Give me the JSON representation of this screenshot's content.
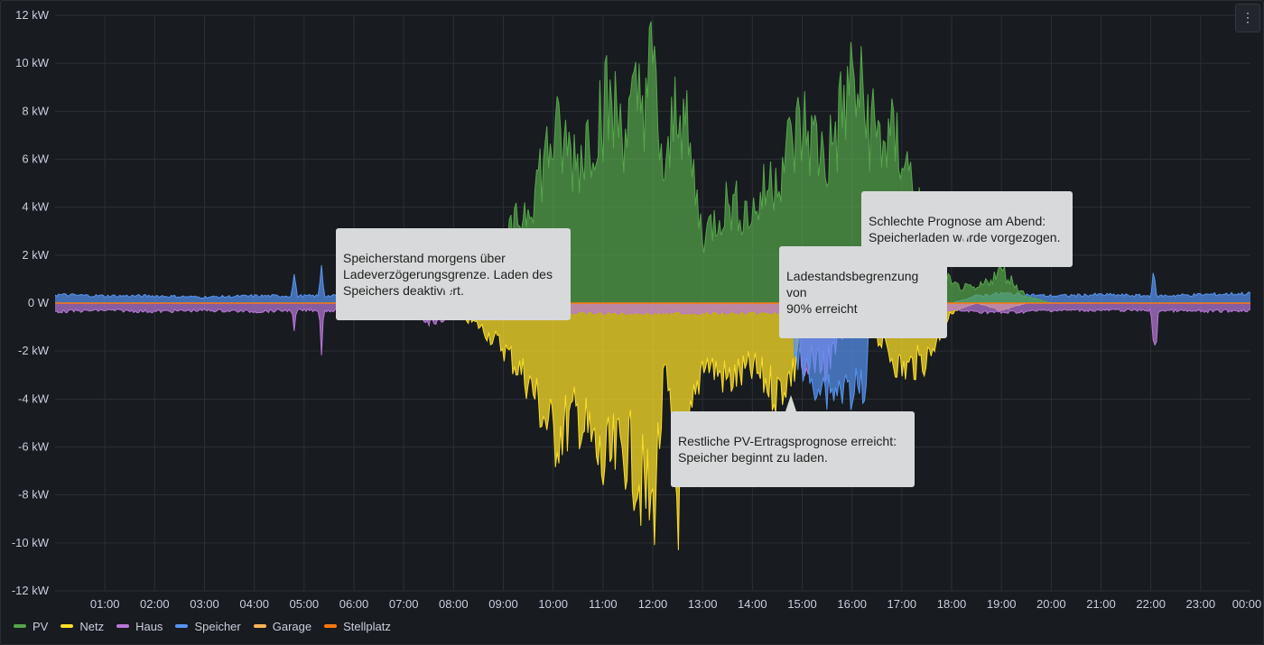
{
  "chart_data": {
    "type": "area",
    "y_unit": "kW",
    "ylim": [
      -12,
      12
    ],
    "y_ticks": [
      "12 kW",
      "10 kW",
      "8 kW",
      "6 kW",
      "4 kW",
      "2 kW",
      "0 W",
      "-2 kW",
      "-4 kW",
      "-6 kW",
      "-8 kW",
      "-10 kW",
      "-12 kW"
    ],
    "x_ticks": [
      "01:00",
      "02:00",
      "03:00",
      "04:00",
      "05:00",
      "06:00",
      "07:00",
      "08:00",
      "09:00",
      "10:00",
      "11:00",
      "12:00",
      "13:00",
      "14:00",
      "15:00",
      "16:00",
      "17:00",
      "18:00",
      "19:00",
      "20:00",
      "21:00",
      "22:00",
      "23:00",
      "00:00"
    ],
    "grid": true,
    "legend_position": "bottom-left",
    "series": [
      {
        "name": "PV",
        "color": "#56a64b",
        "hours": [
          0,
          1,
          2,
          3,
          4,
          5,
          6,
          7,
          7.5,
          8,
          8.5,
          9,
          9.5,
          10,
          10.5,
          11,
          11.5,
          12,
          12.25,
          12.5,
          13,
          13.5,
          14,
          14.5,
          15,
          15.5,
          16,
          16.5,
          17,
          17.5,
          18,
          18.5,
          19,
          19.5,
          20,
          21,
          22,
          23,
          24
        ],
        "values": [
          0,
          0,
          0,
          0,
          0,
          0,
          0,
          0.1,
          0.3,
          0.6,
          1.2,
          2.5,
          4.5,
          7.5,
          6.5,
          9,
          8,
          10.5,
          5,
          10,
          3,
          4.5,
          4,
          6,
          8,
          6.5,
          10,
          7.5,
          7,
          3,
          0.8,
          0.6,
          1.5,
          0.3,
          0,
          0,
          0,
          0,
          0
        ]
      },
      {
        "name": "Netz",
        "color": "#fade2a",
        "hours": [
          0,
          1,
          2,
          3,
          4,
          5,
          6,
          7,
          7.5,
          8,
          8.5,
          9,
          9.5,
          10,
          10.5,
          11,
          11.5,
          12,
          12.25,
          12.5,
          13,
          13.5,
          14,
          14.5,
          14.85,
          15,
          16,
          16.3,
          16.5,
          17,
          17.5,
          18,
          18.5,
          19,
          19.5,
          20,
          21,
          22,
          23,
          24
        ],
        "values": [
          0,
          0,
          0,
          0,
          0,
          0,
          0,
          0,
          -0.1,
          -0.4,
          -1,
          -2,
          -3.5,
          -6,
          -5,
          -7.5,
          -6.5,
          -9.5,
          -3,
          -9,
          -2.5,
          -3.5,
          -3,
          -4,
          -3,
          0,
          0,
          0,
          -1.5,
          -3,
          -2.5,
          -0.4,
          0,
          -0.3,
          0,
          0,
          0,
          0,
          0,
          0
        ]
      },
      {
        "name": "Haus",
        "color": "#b877d9",
        "hours": [
          0,
          1,
          2,
          3,
          4,
          4.75,
          4.8,
          4.85,
          5,
          5.3,
          5.35,
          5.4,
          6,
          7,
          7.5,
          8,
          9,
          10,
          11,
          12,
          13,
          14,
          14.85,
          15,
          15.5,
          16,
          16.5,
          17,
          18,
          19,
          20,
          21,
          22,
          22.1,
          22.15,
          23,
          24
        ],
        "values": [
          -0.35,
          -0.3,
          -0.35,
          -0.3,
          -0.35,
          -0.3,
          -1.5,
          -0.3,
          -0.3,
          -0.3,
          -2,
          -0.3,
          -0.35,
          -0.3,
          -0.8,
          -0.6,
          -0.4,
          -0.4,
          -0.4,
          -0.4,
          -0.4,
          -0.4,
          -0.4,
          -2.5,
          -2.8,
          -0.4,
          -0.4,
          -0.4,
          -0.3,
          -0.4,
          -0.3,
          -0.3,
          -0.3,
          -3,
          -0.3,
          -0.35,
          -0.3
        ]
      },
      {
        "name": "Speicher",
        "color": "#5794f2",
        "hours": [
          0,
          1,
          2,
          3,
          4,
          4.75,
          4.8,
          4.85,
          5,
          5.3,
          5.35,
          5.4,
          6,
          7,
          7.2,
          14.8,
          14.85,
          15,
          15.5,
          16,
          16.3,
          16.35,
          17,
          18,
          18.5,
          19,
          20,
          21,
          22,
          22.05,
          22.1,
          23,
          24
        ],
        "values": [
          0.35,
          0.3,
          0.3,
          0.25,
          0.3,
          0.3,
          1.4,
          0.3,
          0.3,
          0.3,
          2,
          0.3,
          0.3,
          0.2,
          0,
          0,
          -2.2,
          -3,
          -3.8,
          -3.8,
          -4,
          0,
          0,
          0,
          0.3,
          0.4,
          0.3,
          0.35,
          0.3,
          1.6,
          0.3,
          0.35,
          0.4
        ]
      },
      {
        "name": "Garage",
        "color": "#ffb357",
        "hours": [
          0,
          24
        ],
        "values": [
          0,
          0
        ]
      },
      {
        "name": "Stellplatz",
        "color": "#ff780a",
        "hours": [
          0,
          24
        ],
        "values": [
          0,
          0
        ]
      }
    ],
    "annotations": [
      {
        "text": "Speicherstand morgens über\nLadeverzögerungsgrenze. Laden des\nSpeichers deaktiviert.",
        "hour": 8.0
      },
      {
        "text": "Restliche PV-Ertragsprognose erreicht:\nSpeicher beginnt zu laden.",
        "hour": 14.85
      },
      {
        "text": "Ladestandsbegrenzung von\n90% erreicht",
        "hour": 16.3
      },
      {
        "text": "Schlechte Prognose am Abend:\nSpeicherladen wurde vorgezogen.",
        "hour": 18.3
      }
    ]
  },
  "menu_icon": "⋮"
}
